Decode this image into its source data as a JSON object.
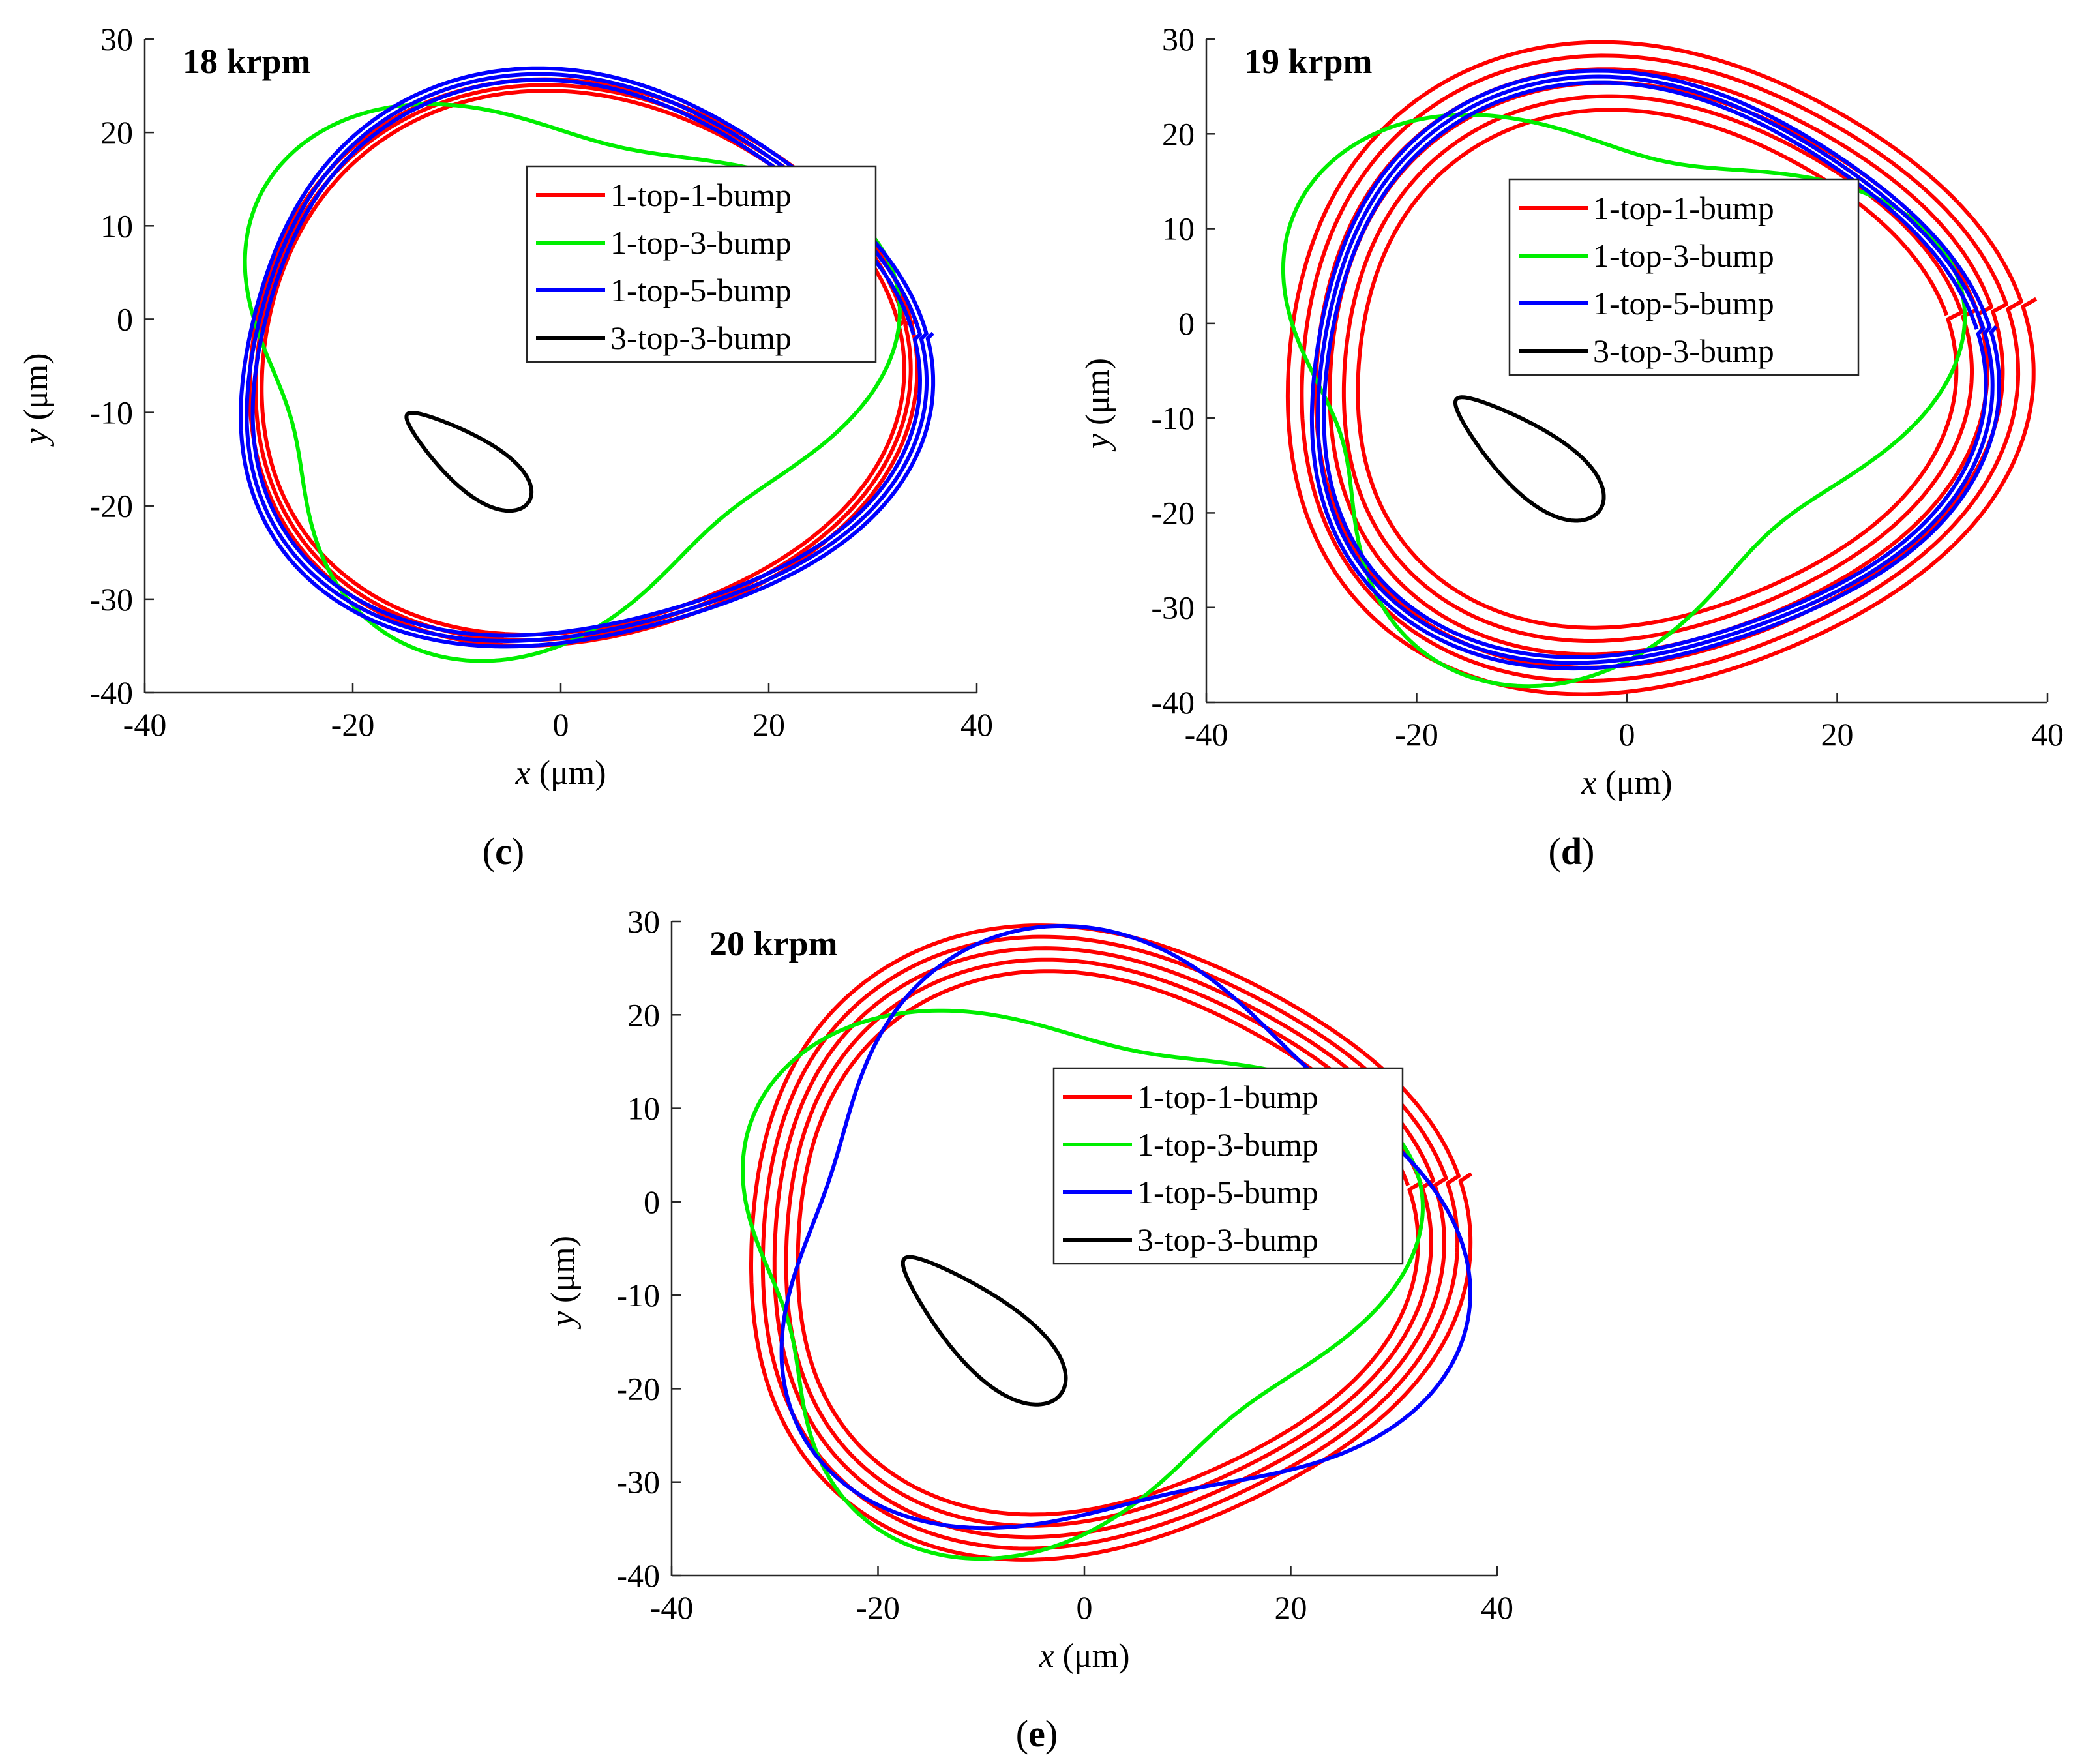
{
  "chart_data": [
    {
      "type": "line",
      "panel": "c",
      "title": "18 krpm",
      "caption_letter": "c",
      "xlabel_var": "x",
      "xlabel_unit": "(μm)",
      "ylabel_var": "y",
      "ylabel_unit": "(μm)",
      "xlim": [
        -40,
        40
      ],
      "ylim": [
        -40,
        30
      ],
      "xticks": [
        -40,
        -20,
        0,
        20,
        40
      ],
      "yticks": [
        -40,
        -30,
        -20,
        -10,
        0,
        10,
        20,
        30
      ],
      "legend_position": "upper-right-inside",
      "series": [
        {
          "name": "1-top-1-bump",
          "color": "#ff0000",
          "loops": 3,
          "cx": 1,
          "cy": -5,
          "rx": 31.5,
          "ry": 29.5,
          "k3": 0.04,
          "p3": 0.8,
          "tilt": 0.15,
          "spread": 0.6
        },
        {
          "name": "1-top-3-bump",
          "color": "#00ee00",
          "loops": 1,
          "cx": -1.5,
          "cy": -4.5,
          "rx": 30,
          "ry": 28,
          "k3": 0.16,
          "p3": 0.15,
          "tilt": 0.3,
          "spread": 0
        },
        {
          "name": "1-top-5-bump",
          "color": "#0000ff",
          "loops": 3,
          "cx": 1,
          "cy": -5,
          "rx": 32.5,
          "ry": 30,
          "k3": 0.06,
          "p3": 0.9,
          "tilt": 0.1,
          "spread": 0.6
        },
        {
          "name": "3-top-3-bump",
          "color": "#000000",
          "loops": 1,
          "shape": "teardrop",
          "cx": -9,
          "cy": -15,
          "len": 7.5,
          "wid": 2.6,
          "angle": -40,
          "tip": 0.8
        }
      ]
    },
    {
      "type": "line",
      "panel": "d",
      "title": "19 krpm",
      "caption_letter": "d",
      "xlabel_var": "x",
      "xlabel_unit": "(μm)",
      "ylabel_var": "y",
      "ylabel_unit": "(μm)",
      "xlim": [
        -40,
        40
      ],
      "ylim": [
        -40,
        30
      ],
      "xticks": [
        -40,
        -20,
        0,
        20,
        40
      ],
      "yticks": [
        -40,
        -30,
        -20,
        -10,
        0,
        10,
        20,
        30
      ],
      "legend_position": "upper-right-inside",
      "series": [
        {
          "name": "1-top-1-bump",
          "color": "#ff0000",
          "loops": 6,
          "cx": 1.5,
          "cy": -5,
          "rx": 32,
          "ry": 30.5,
          "k3": 0.05,
          "p3": 0.8,
          "tilt": 0.2,
          "spread": 1.4
        },
        {
          "name": "1-top-3-bump",
          "color": "#00ee00",
          "loops": 1,
          "cx": -3,
          "cy": -5.5,
          "rx": 30.5,
          "ry": 28,
          "k3": 0.18,
          "p3": 0.1,
          "tilt": 0.3,
          "spread": 0
        },
        {
          "name": "1-top-5-bump",
          "color": "#0000ff",
          "loops": 3,
          "cx": 1,
          "cy": -5.5,
          "rx": 32,
          "ry": 30.5,
          "k3": 0.06,
          "p3": 0.85,
          "tilt": 0.15,
          "spread": 0.6
        },
        {
          "name": "3-top-3-bump",
          "color": "#000000",
          "loops": 1,
          "shape": "teardrop",
          "cx": -9.5,
          "cy": -14,
          "len": 9,
          "wid": 3.2,
          "angle": -42,
          "tip": 0.8
        }
      ]
    },
    {
      "type": "line",
      "panel": "e",
      "title": "20 krpm",
      "caption_letter": "e",
      "xlabel_var": "x",
      "xlabel_unit": "(μm)",
      "ylabel_var": "y",
      "ylabel_unit": "(μm)",
      "xlim": [
        -40,
        40
      ],
      "ylim": [
        -40,
        30
      ],
      "xticks": [
        -40,
        -20,
        0,
        20,
        40
      ],
      "yticks": [
        -40,
        -30,
        -20,
        -10,
        0,
        10,
        20,
        30
      ],
      "legend_position": "upper-right-inside",
      "series": [
        {
          "name": "1-top-1-bump",
          "color": "#ff0000",
          "loops": 5,
          "cx": 0.5,
          "cy": -4.5,
          "rx": 32.5,
          "ry": 31,
          "k3": 0.06,
          "p3": 0.7,
          "tilt": 0.2,
          "spread": 1.2
        },
        {
          "name": "1-top-3-bump",
          "color": "#00ee00",
          "loops": 1,
          "cx": -3,
          "cy": -6.5,
          "rx": 31.5,
          "ry": 27.5,
          "k3": 0.16,
          "p3": 0.0,
          "tilt": 0.25,
          "spread": 0
        },
        {
          "name": "1-top-5-bump",
          "color": "#0000ff",
          "loops": 1,
          "cx": 2,
          "cy": -5,
          "rx": 32,
          "ry": 31,
          "k3": 0.13,
          "p3": 1.15,
          "tilt": 0.1,
          "spread": 0
        },
        {
          "name": "3-top-3-bump",
          "color": "#000000",
          "loops": 1,
          "shape": "teardrop",
          "cx": -10,
          "cy": -13.5,
          "len": 10.5,
          "wid": 3.6,
          "angle": -45,
          "tip": 0.8
        }
      ]
    }
  ]
}
